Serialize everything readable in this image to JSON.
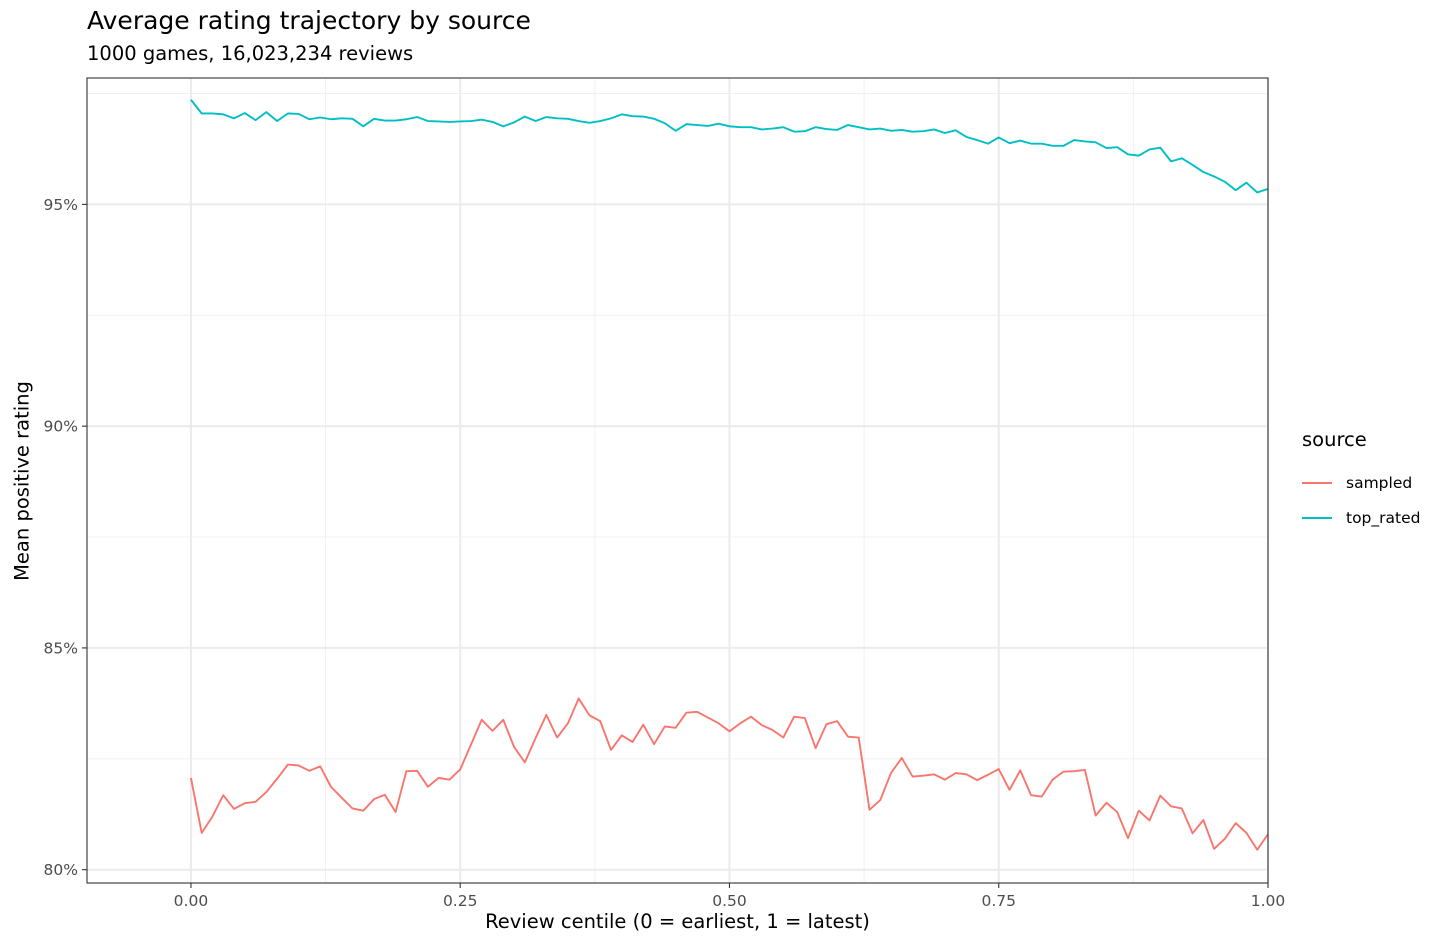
{
  "chart_data": {
    "type": "line",
    "title": "Average rating trajectory by source",
    "subtitle": "1000 games, 16,023,234 reviews",
    "xlabel": "Review centile (0 = earliest, 1 = latest)",
    "ylabel": "Mean positive rating",
    "xlim": [
      -0.0965,
      1.0
    ],
    "ylim": [
      79.7,
      97.85
    ],
    "xticks": [
      0.0,
      0.25,
      0.5,
      0.75,
      1.0
    ],
    "xtick_labels": [
      "0.00",
      "0.25",
      "0.50",
      "0.75",
      "1.00"
    ],
    "yticks": [
      80,
      85,
      90,
      95
    ],
    "ytick_labels": [
      "80%",
      "85%",
      "90%",
      "95%"
    ],
    "grid": true,
    "legend_title": "source",
    "legend_position": "right",
    "series": [
      {
        "name": "sampled",
        "color": "#F8766D",
        "values": [
          82.07,
          80.83,
          81.2,
          81.68,
          81.37,
          81.5,
          81.53,
          81.75,
          82.05,
          82.37,
          82.35,
          82.23,
          82.33,
          81.87,
          81.62,
          81.38,
          81.33,
          81.59,
          81.69,
          81.3,
          82.22,
          82.23,
          81.87,
          82.07,
          82.03,
          82.26,
          82.82,
          83.38,
          83.13,
          83.38,
          82.77,
          82.42,
          82.97,
          83.49,
          82.98,
          83.3,
          83.86,
          83.48,
          83.35,
          82.7,
          83.03,
          82.88,
          83.27,
          82.83,
          83.23,
          83.2,
          83.54,
          83.56,
          83.43,
          83.3,
          83.12,
          83.3,
          83.45,
          83.26,
          83.15,
          82.98,
          83.45,
          83.42,
          82.74,
          83.28,
          83.35,
          83.0,
          82.98,
          81.35,
          81.57,
          82.18,
          82.52,
          82.1,
          82.12,
          82.15,
          82.03,
          82.18,
          82.15,
          82.02,
          82.14,
          82.27,
          81.8,
          82.24,
          81.68,
          81.65,
          82.03,
          82.21,
          82.22,
          82.25,
          81.22,
          81.51,
          81.3,
          80.71,
          81.33,
          81.11,
          81.67,
          81.43,
          81.38,
          80.82,
          81.12,
          80.47,
          80.7,
          81.05,
          80.83,
          80.45,
          80.8
        ]
      },
      {
        "name": "top_rated",
        "color": "#00BFC4",
        "values": [
          97.36,
          97.05,
          97.05,
          97.03,
          96.94,
          97.06,
          96.9,
          97.08,
          96.88,
          97.05,
          97.04,
          96.92,
          96.96,
          96.92,
          96.94,
          96.93,
          96.76,
          96.93,
          96.89,
          96.89,
          96.92,
          96.97,
          96.88,
          96.87,
          96.86,
          96.87,
          96.88,
          96.91,
          96.86,
          96.76,
          96.85,
          96.98,
          96.88,
          96.97,
          96.94,
          96.93,
          96.88,
          96.84,
          96.88,
          96.94,
          97.03,
          96.99,
          96.98,
          96.93,
          96.83,
          96.66,
          96.81,
          96.79,
          96.77,
          96.82,
          96.76,
          96.74,
          96.74,
          96.69,
          96.71,
          96.74,
          96.64,
          96.65,
          96.74,
          96.7,
          96.68,
          96.79,
          96.74,
          96.69,
          96.71,
          96.66,
          96.68,
          96.64,
          96.65,
          96.69,
          96.61,
          96.67,
          96.52,
          96.45,
          96.37,
          96.51,
          96.38,
          96.44,
          96.37,
          96.37,
          96.32,
          96.32,
          96.45,
          96.42,
          96.4,
          96.27,
          96.29,
          96.13,
          96.1,
          96.24,
          96.28,
          95.97,
          96.04,
          95.89,
          95.73,
          95.63,
          95.51,
          95.32,
          95.49,
          95.27,
          95.35
        ]
      }
    ]
  }
}
